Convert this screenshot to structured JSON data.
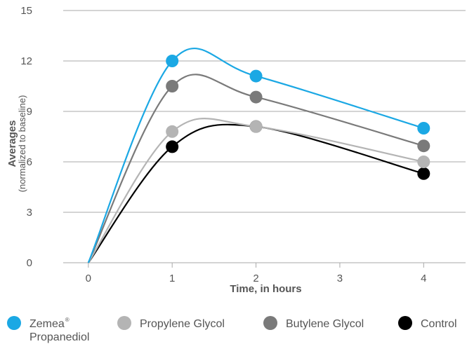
{
  "chart_data": {
    "type": "line",
    "xlabel": "Time, in hours",
    "ylabel": "Averages",
    "ylabel_sub": "(normalized to baseline)",
    "x_ticks": [
      0,
      1,
      2,
      3,
      4
    ],
    "y_ticks": [
      0,
      3,
      6,
      9,
      12,
      15
    ],
    "xlim": [
      -0.3,
      4.5
    ],
    "ylim": [
      0,
      15
    ],
    "grid": "horizontal",
    "smooth": true,
    "legend_position": "bottom",
    "series": [
      {
        "name": "Zemea",
        "name_sup": "®",
        "name_line2": "Propanediol",
        "color": "#1ba8e4",
        "x": [
          0,
          1,
          2,
          4
        ],
        "y": [
          0,
          12.0,
          11.1,
          8.0
        ]
      },
      {
        "name": "Propylene Glycol",
        "color": "#b4b4b4",
        "x": [
          0,
          1,
          2,
          4
        ],
        "y": [
          0,
          7.8,
          8.1,
          6.0
        ]
      },
      {
        "name": "Butylene Glycol",
        "color": "#7a7a7a",
        "x": [
          0,
          1,
          2,
          4
        ],
        "y": [
          0,
          10.5,
          9.85,
          6.95
        ]
      },
      {
        "name": "Control",
        "color": "#000000",
        "x": [
          0,
          1,
          2,
          4
        ],
        "y": [
          0,
          6.9,
          8.1,
          5.3
        ]
      }
    ]
  }
}
